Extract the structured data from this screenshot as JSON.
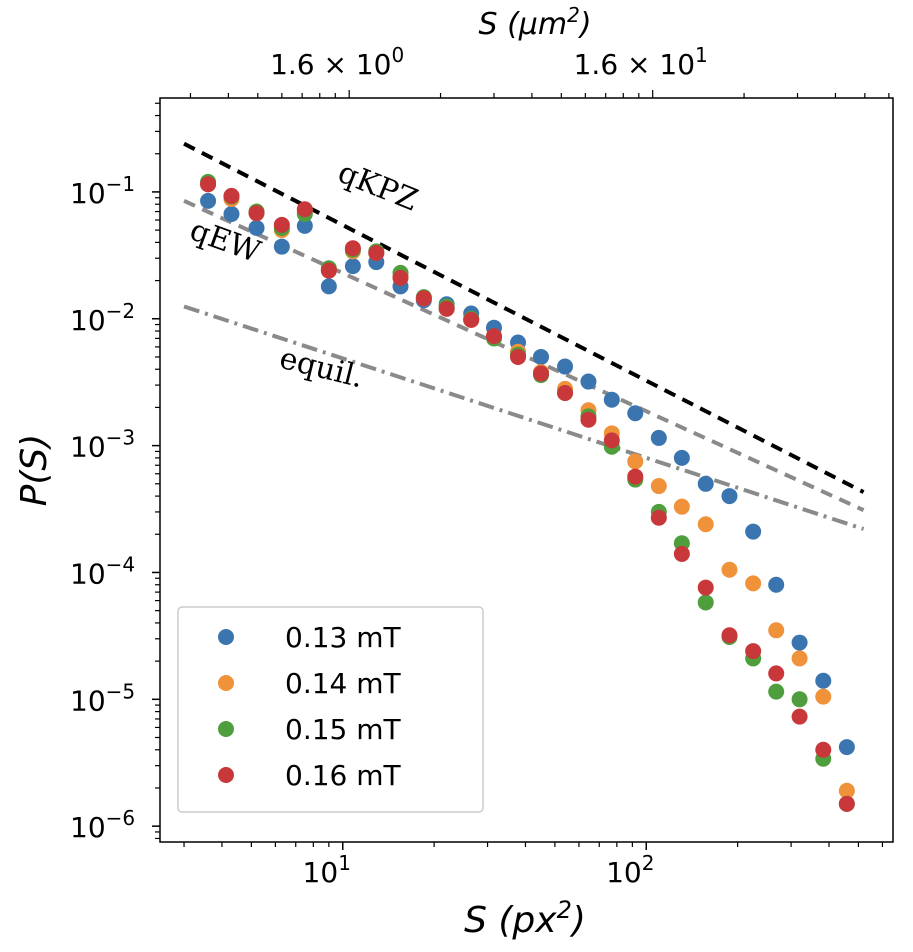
{
  "chart_data": {
    "type": "scatter",
    "xscale": "log",
    "yscale": "log",
    "xlim": [
      2.5,
      650
    ],
    "ylim": [
      7.5e-07,
      0.55
    ],
    "xlabel_var": "S",
    "xlabel_unit": "(px",
    "xlabel_sup": "2",
    "xlabel_close": ")",
    "ylabel": "P(S)",
    "top_axis": {
      "label_var": "S",
      "label_unit": "(μm",
      "label_sup": "2",
      "label_close": ")",
      "ticks": [
        {
          "x": 10.5,
          "mant": "1.6 × 10",
          "exp": "0"
        },
        {
          "x": 105,
          "mant": "1.6 × 10",
          "exp": "1"
        }
      ]
    },
    "x_ticks": [
      {
        "x": 10,
        "mant": "10",
        "exp": "1"
      },
      {
        "x": 100,
        "mant": "10",
        "exp": "2"
      }
    ],
    "y_ticks": [
      {
        "y": 0.1,
        "mant": "10",
        "exp": "−1"
      },
      {
        "y": 0.01,
        "mant": "10",
        "exp": "−2"
      },
      {
        "y": 0.001,
        "mant": "10",
        "exp": "−3"
      },
      {
        "y": 0.0001,
        "mant": "10",
        "exp": "−4"
      },
      {
        "y": 1e-05,
        "mant": "10",
        "exp": "−5"
      },
      {
        "y": 1e-06,
        "mant": "10",
        "exp": "−6"
      }
    ],
    "reference_lines": [
      {
        "name": "qKPZ",
        "label": "qKPZ",
        "x": [
          3,
          520
        ],
        "y": [
          0.24,
          0.00043
        ],
        "color": "#000000",
        "dash": "12,8"
      },
      {
        "name": "qEW",
        "label": "qEW",
        "x": [
          3,
          520
        ],
        "y": [
          0.085,
          0.00031
        ],
        "color": "#8a8a8a",
        "dash": "12,8"
      },
      {
        "name": "equil",
        "label": "equil.",
        "x": [
          3,
          520
        ],
        "y": [
          0.0125,
          0.00022
        ],
        "color": "#8a8a8a",
        "dash": "16,6,3,6"
      }
    ],
    "series": [
      {
        "name": "0.13 mT",
        "color": "#3b75af",
        "x": [
          3.6,
          4.3,
          5.2,
          6.3,
          7.5,
          9.0,
          10.8,
          12.9,
          15.5,
          18.5,
          22,
          26.5,
          31.5,
          37.8,
          45,
          54,
          64.5,
          77,
          92,
          110,
          131,
          157,
          188,
          225,
          268,
          320,
          383,
          458
        ],
        "y": [
          0.085,
          0.067,
          0.052,
          0.037,
          0.054,
          0.018,
          0.026,
          0.028,
          0.018,
          0.014,
          0.013,
          0.011,
          0.0085,
          0.0065,
          0.005,
          0.0042,
          0.0032,
          0.0023,
          0.0018,
          0.00115,
          0.0008,
          0.0005,
          0.0004,
          0.00021,
          8e-05,
          2.8e-05,
          1.4e-05,
          4.2e-06
        ]
      },
      {
        "name": "0.14 mT",
        "color": "#f0923a",
        "x": [
          3.6,
          4.3,
          5.2,
          6.3,
          7.5,
          9.0,
          10.8,
          12.9,
          15.5,
          18.5,
          22,
          26.5,
          31.5,
          37.8,
          45,
          54,
          64.5,
          77,
          92,
          110,
          131,
          157,
          188,
          225,
          268,
          320,
          383,
          458
        ],
        "y": [
          0.115,
          0.088,
          0.068,
          0.05,
          0.07,
          0.024,
          0.034,
          0.033,
          0.022,
          0.0145,
          0.012,
          0.0098,
          0.0072,
          0.0055,
          0.0038,
          0.0028,
          0.0019,
          0.00125,
          0.00075,
          0.00048,
          0.00033,
          0.00024,
          0.000105,
          8.2e-05,
          3.5e-05,
          2.1e-05,
          1.05e-05,
          1.9e-06
        ]
      },
      {
        "name": "0.15 mT",
        "color": "#4f9e3d",
        "x": [
          3.6,
          4.3,
          5.2,
          6.3,
          7.5,
          9.0,
          10.8,
          12.9,
          15.5,
          18.5,
          22,
          26.5,
          31.5,
          37.8,
          45,
          54,
          64.5,
          77,
          92,
          110,
          131,
          157,
          188,
          225,
          268,
          320,
          383,
          458
        ],
        "y": [
          0.12,
          0.092,
          0.07,
          0.052,
          0.067,
          0.025,
          0.035,
          0.034,
          0.023,
          0.0148,
          0.0125,
          0.01,
          0.007,
          0.0052,
          0.0036,
          0.0026,
          0.0017,
          0.00098,
          0.00054,
          0.0003,
          0.00017,
          5.8e-05,
          3.1e-05,
          2.1e-05,
          1.15e-05,
          1e-05,
          3.4e-06,
          1.5e-06
        ]
      },
      {
        "name": "0.16 mT",
        "color": "#c8383a",
        "x": [
          3.6,
          4.3,
          5.2,
          6.3,
          7.5,
          9.0,
          10.8,
          12.9,
          15.5,
          18.5,
          22,
          26.5,
          31.5,
          37.8,
          45,
          54,
          64.5,
          77,
          92,
          110,
          131,
          157,
          188,
          225,
          268,
          320,
          383,
          458
        ],
        "y": [
          0.115,
          0.093,
          0.068,
          0.055,
          0.073,
          0.024,
          0.036,
          0.033,
          0.021,
          0.0145,
          0.012,
          0.0098,
          0.0073,
          0.005,
          0.0037,
          0.0026,
          0.0016,
          0.0011,
          0.00057,
          0.00027,
          0.00014,
          7.6e-05,
          3.2e-05,
          2.4e-05,
          1.6e-05,
          7.3e-06,
          4e-06,
          1.5e-06
        ]
      }
    ],
    "legend_position": "lower-left"
  }
}
